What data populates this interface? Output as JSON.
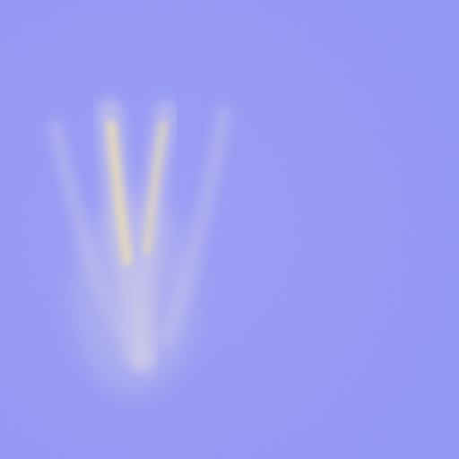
{
  "image": {
    "subject": "",
    "colors": {
      "background": "#8a8ff2",
      "background_light": "#9599f5",
      "streak_glow": "#c9c4e6",
      "streak_core": "#e8dcae",
      "streak_highlight": "#f2e6a6"
    }
  }
}
